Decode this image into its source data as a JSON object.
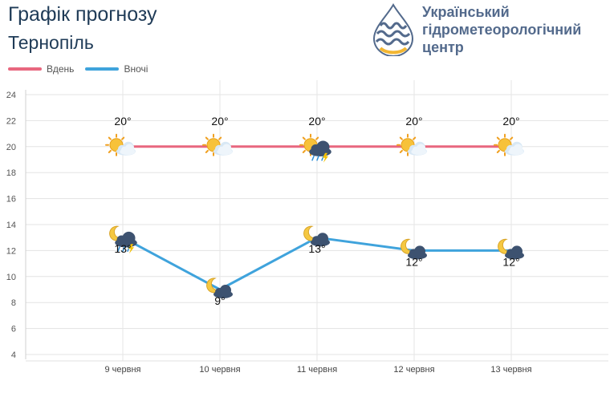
{
  "header": {
    "title": "Графік прогнозу",
    "city": "Тернопіль"
  },
  "logo": {
    "line1": "Український",
    "line2": "гідрометеорологічний",
    "line3": "центр",
    "color": "#536a8c",
    "accent": "#f2b632"
  },
  "chart_data": {
    "type": "line",
    "categories": [
      "9 червня",
      "10 червня",
      "11 червня",
      "12 червня",
      "13 червня"
    ],
    "series": [
      {
        "name": "Вдень",
        "color": "#e8677f",
        "values": [
          20,
          20,
          20,
          20,
          20
        ],
        "labels": [
          "20°",
          "20°",
          "20°",
          "20°",
          "20°"
        ],
        "icons": [
          "sun-cloud-icon",
          "sun-cloud-icon",
          "sun-storm-rain-icon",
          "sun-cloud-icon",
          "sun-cloud-icon"
        ]
      },
      {
        "name": "Вночі",
        "color": "#3fa3dc",
        "values": [
          13,
          9,
          13,
          12,
          12
        ],
        "labels": [
          "13°",
          "9°",
          "13°",
          "12°",
          "12°"
        ],
        "icons": [
          "moon-storm-rain-icon",
          "moon-cloud-icon",
          "moon-cloud-icon",
          "moon-cloud-icon",
          "moon-cloud-icon"
        ]
      }
    ],
    "yticks": [
      "4",
      "6",
      "8",
      "10",
      "12",
      "14",
      "16",
      "18",
      "20",
      "22",
      "24"
    ],
    "ylim": [
      4,
      25
    ],
    "grid": true,
    "legend": "top-left"
  }
}
